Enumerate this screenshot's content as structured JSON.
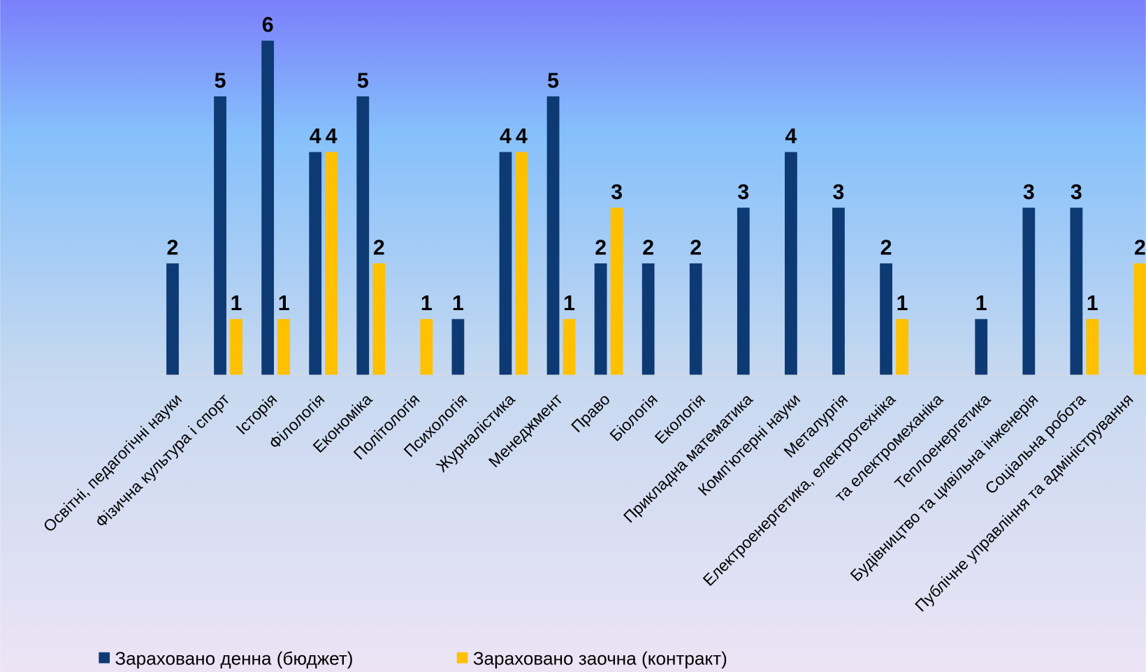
{
  "chart_data": {
    "type": "bar",
    "categories": [
      "Освітні, педагогічні науки",
      "Фізична культура і спорт",
      "Історія",
      "Філологія",
      "Економіка",
      "Політологія",
      "Психологія",
      "Журналістика",
      "Менеджмент",
      "Право",
      "Біологія",
      "Екологія",
      "Прикладна математика",
      "Комп'ютерні науки",
      "Металургія",
      "Електроенергетика, електротехніка",
      "та електромеханіка",
      "Теплоенергетика",
      "Будівництво та цивільна інженерія",
      "Соціальна робота",
      "Публічне управління та адміністрування"
    ],
    "series": [
      {
        "name": "Зараховано денна (бюджет)",
        "color": "#0e3a74",
        "values": [
          2,
          5,
          6,
          4,
          5,
          null,
          1,
          4,
          5,
          2,
          2,
          2,
          3,
          4,
          3,
          2,
          null,
          1,
          3,
          3,
          null
        ]
      },
      {
        "name": "Зараховано заочна (контракт)",
        "color": "#ffc000",
        "values": [
          null,
          1,
          1,
          4,
          2,
          1,
          null,
          4,
          1,
          3,
          null,
          null,
          null,
          null,
          null,
          1,
          null,
          null,
          null,
          1,
          2
        ]
      }
    ],
    "ylim": [
      0,
      6.6
    ],
    "legend": "bottom"
  }
}
